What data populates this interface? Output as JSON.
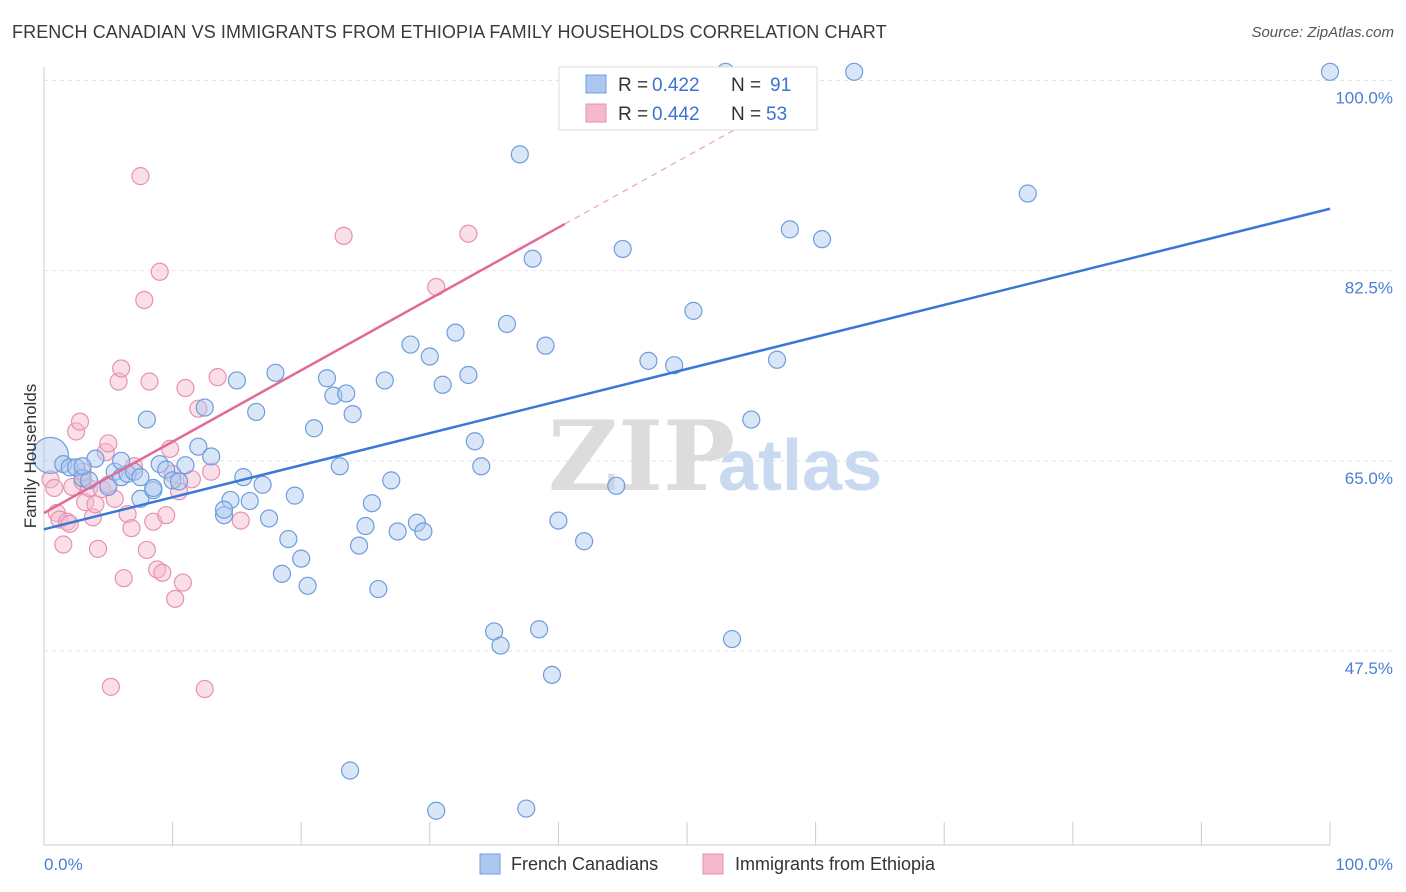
{
  "title": "FRENCH CANADIAN VS IMMIGRANTS FROM ETHIOPIA FAMILY HOUSEHOLDS CORRELATION CHART",
  "source": "Source: ZipAtlas.com",
  "watermark": {
    "zip": "ZIP",
    "atlas": "atlas"
  },
  "colors": {
    "blue": "#3b78d6",
    "blue_fill": "#aac8f0",
    "pink": "#e06a98",
    "pink_fill": "#f5b8cc"
  },
  "legend": {
    "r_label": "R = ",
    "n_label": "N = ",
    "items": [
      {
        "r": "0.422",
        "n": "91"
      },
      {
        "r": "0.442",
        "n": "53"
      }
    ]
  },
  "bottom_legend": [
    "French Canadians",
    "Immigrants from Ethiopia"
  ],
  "chart_data": {
    "type": "scatter",
    "ylabel": "Family Households",
    "xlim": [
      0,
      100
    ],
    "ylim": [
      32,
      102
    ],
    "y_ticks": [
      {
        "value": 100,
        "label": "100.0%"
      },
      {
        "value": 82.5,
        "label": "82.5%"
      },
      {
        "value": 65,
        "label": "65.0%"
      },
      {
        "value": 47.5,
        "label": "47.5%"
      }
    ],
    "x_tick_labels": [
      {
        "value": 0,
        "label": "0.0%"
      },
      {
        "value": 100,
        "label": "100.0%"
      }
    ],
    "series": [
      {
        "name": "French Canadians",
        "trend": {
          "x": [
            0,
            100
          ],
          "y": [
            58.7,
            88.2
          ]
        },
        "points": [
          [
            0.5,
            65.5
          ],
          [
            1.5,
            64.7
          ],
          [
            2,
            64.4
          ],
          [
            2.5,
            64.4
          ],
          [
            3,
            63.4
          ],
          [
            3.5,
            63.2
          ],
          [
            4,
            65.2
          ],
          [
            5,
            62.6
          ],
          [
            5.5,
            64
          ],
          [
            6,
            63.5
          ],
          [
            6.5,
            63.8
          ],
          [
            7,
            64
          ],
          [
            7.5,
            61.5
          ],
          [
            8,
            68.8
          ],
          [
            8.5,
            62.3
          ],
          [
            9,
            64.7
          ],
          [
            9.5,
            64.2
          ],
          [
            10,
            63.2
          ],
          [
            10.5,
            63.1
          ],
          [
            11,
            64.6
          ],
          [
            12,
            66.3
          ],
          [
            12.5,
            69.9
          ],
          [
            13,
            65.4
          ],
          [
            14,
            60
          ],
          [
            14.5,
            61.4
          ],
          [
            15,
            72.4
          ],
          [
            15.5,
            63.5
          ],
          [
            16,
            61.3
          ],
          [
            16.5,
            69.5
          ],
          [
            17,
            62.8
          ],
          [
            17.5,
            59.7
          ],
          [
            18,
            73.1
          ],
          [
            18.5,
            54.6
          ],
          [
            19,
            57.8
          ],
          [
            19.5,
            61.8
          ],
          [
            20,
            56
          ],
          [
            20.5,
            53.5
          ],
          [
            21,
            68
          ],
          [
            22,
            72.6
          ],
          [
            22.5,
            71
          ],
          [
            23,
            64.5
          ],
          [
            23.5,
            71.2
          ],
          [
            24,
            69.3
          ],
          [
            24.5,
            57.2
          ],
          [
            25,
            59
          ],
          [
            25.5,
            61.1
          ],
          [
            26,
            53.2
          ],
          [
            26.5,
            72.4
          ],
          [
            27,
            63.2
          ],
          [
            27.5,
            58.5
          ],
          [
            28.5,
            75.7
          ],
          [
            29,
            59.3
          ],
          [
            29.5,
            58.5
          ],
          [
            30,
            74.6
          ],
          [
            30.5,
            32.8
          ],
          [
            31,
            72
          ],
          [
            32,
            76.8
          ],
          [
            33,
            72.9
          ],
          [
            33.5,
            66.8
          ],
          [
            34,
            64.5
          ],
          [
            35,
            49.3
          ],
          [
            35.5,
            48
          ],
          [
            36,
            77.6
          ],
          [
            37,
            93.2
          ],
          [
            37.5,
            33
          ],
          [
            38,
            83.6
          ],
          [
            38.5,
            49.5
          ],
          [
            39,
            75.6
          ],
          [
            39.5,
            45.3
          ],
          [
            40,
            59.5
          ],
          [
            42,
            57.6
          ],
          [
            44.5,
            62.7
          ],
          [
            45,
            84.5
          ],
          [
            47,
            74.2
          ],
          [
            49,
            73.8
          ],
          [
            50.5,
            78.8
          ],
          [
            53,
            100.8
          ],
          [
            53.5,
            48.6
          ],
          [
            55,
            68.8
          ],
          [
            57,
            74.3
          ],
          [
            58,
            86.3
          ],
          [
            60.5,
            85.4
          ],
          [
            63,
            100.8
          ],
          [
            76.5,
            89.6
          ],
          [
            100,
            100.8
          ],
          [
            23.8,
            36.5
          ],
          [
            7.5,
            63.5
          ],
          [
            8.5,
            62.5
          ],
          [
            3,
            64.5
          ],
          [
            14,
            60.5
          ],
          [
            6,
            65
          ]
        ]
      },
      {
        "name": "Immigrants from Ethiopia",
        "trend": {
          "x": [
            0,
            40.5
          ],
          "y": [
            60.2,
            86.8
          ]
        },
        "dashed_extension": {
          "x": [
            40.5,
            60
          ],
          "y": [
            86.8,
            99.6
          ]
        },
        "points": [
          [
            0.5,
            63.3
          ],
          [
            0.8,
            62.5
          ],
          [
            1,
            60.2
          ],
          [
            1.2,
            59.6
          ],
          [
            1.5,
            57.3
          ],
          [
            1.8,
            59.4
          ],
          [
            2,
            59.2
          ],
          [
            2.2,
            62.6
          ],
          [
            2.5,
            67.7
          ],
          [
            2.8,
            68.6
          ],
          [
            3,
            63.1
          ],
          [
            3.2,
            61.2
          ],
          [
            3.5,
            62.5
          ],
          [
            3.8,
            59.8
          ],
          [
            4,
            61
          ],
          [
            4.2,
            56.9
          ],
          [
            4.5,
            62.4
          ],
          [
            4.8,
            65.8
          ],
          [
            5,
            66.6
          ],
          [
            5.2,
            44.2
          ],
          [
            5.5,
            61.5
          ],
          [
            5.8,
            72.3
          ],
          [
            6,
            73.5
          ],
          [
            6.2,
            54.2
          ],
          [
            6.5,
            60.1
          ],
          [
            6.8,
            58.8
          ],
          [
            7,
            64.5
          ],
          [
            7.5,
            91.2
          ],
          [
            7.8,
            79.8
          ],
          [
            8,
            56.8
          ],
          [
            8.2,
            72.3
          ],
          [
            8.5,
            59.4
          ],
          [
            8.8,
            55
          ],
          [
            9,
            82.4
          ],
          [
            9.2,
            54.7
          ],
          [
            9.5,
            60
          ],
          [
            9.8,
            66.1
          ],
          [
            10,
            63.8
          ],
          [
            10.2,
            52.3
          ],
          [
            10.5,
            62.2
          ],
          [
            10.8,
            53.8
          ],
          [
            11,
            71.7
          ],
          [
            11.5,
            63.3
          ],
          [
            12,
            69.8
          ],
          [
            12.5,
            44
          ],
          [
            13,
            64
          ],
          [
            13.5,
            72.7
          ],
          [
            15.3,
            59.5
          ],
          [
            23.3,
            85.7
          ],
          [
            30.5,
            81
          ],
          [
            33,
            85.9
          ],
          [
            5,
            62.8
          ],
          [
            3,
            64
          ]
        ]
      }
    ]
  }
}
